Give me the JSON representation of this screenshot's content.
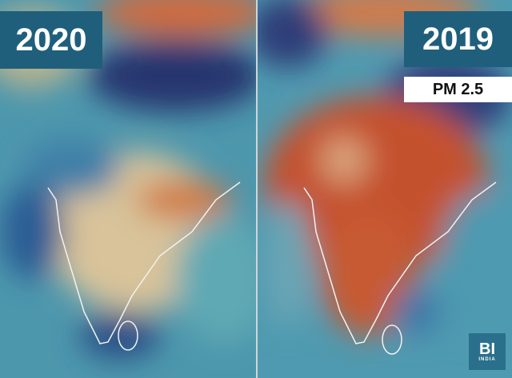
{
  "panels": [
    {
      "year": "2020"
    },
    {
      "year": "2019",
      "legend": "PM 2.5"
    }
  ],
  "logo": {
    "mark": "BI",
    "subtitle": "INDIA"
  }
}
